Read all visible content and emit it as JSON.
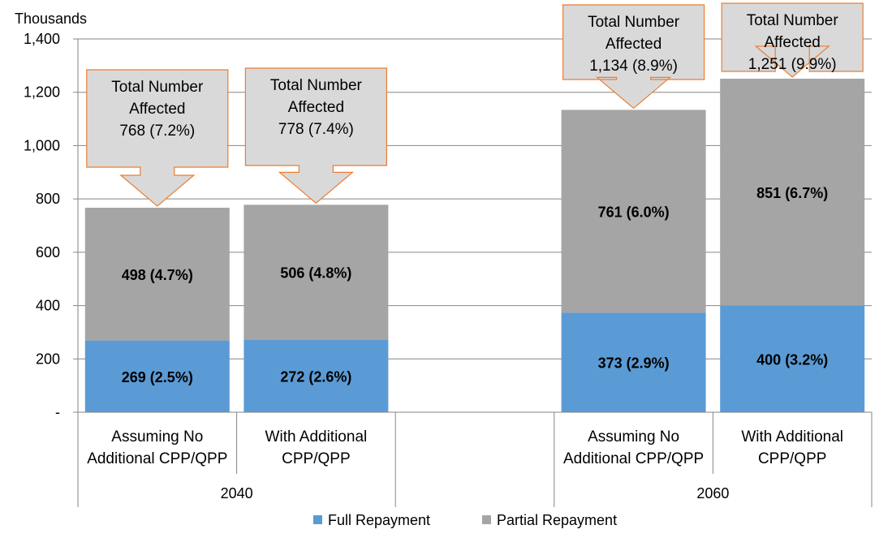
{
  "chart_data": {
    "type": "bar",
    "stacked": true,
    "ylabel": "Thousands",
    "ylim": [
      0,
      1400
    ],
    "yticks": [
      {
        "value": 0,
        "label": "-"
      },
      {
        "value": 200,
        "label": "200"
      },
      {
        "value": 400,
        "label": "400"
      },
      {
        "value": 600,
        "label": "600"
      },
      {
        "value": 800,
        "label": "800"
      },
      {
        "value": 1000,
        "label": "1,000"
      },
      {
        "value": 1200,
        "label": "1,200"
      },
      {
        "value": 1400,
        "label": "1,400"
      }
    ],
    "grid": true,
    "legend_position": "bottom",
    "groups": [
      {
        "label": "2040",
        "categories": [
          {
            "lines": [
              "Assuming No",
              "Additional CPP/QPP"
            ]
          },
          {
            "lines": [
              "With Additional",
              "CPP/QPP"
            ]
          }
        ]
      },
      {
        "label": "2060",
        "categories": [
          {
            "lines": [
              "Assuming No",
              "Additional CPP/QPP"
            ]
          },
          {
            "lines": [
              "With Additional",
              "CPP/QPP"
            ]
          }
        ]
      }
    ],
    "series": [
      {
        "name": "Full Repayment",
        "color": "#5B9BD5",
        "values": [
          269,
          272,
          373,
          400
        ],
        "labels": [
          "269 (2.5%)",
          "272 (2.6%)",
          "373 (2.9%)",
          "400 (3.2%)"
        ]
      },
      {
        "name": "Partial Repayment",
        "color": "#A5A5A5",
        "values": [
          498,
          506,
          761,
          851
        ],
        "labels": [
          "498 (4.7%)",
          "506 (4.8%)",
          "761 (6.0%)",
          "851 (6.7%)"
        ]
      }
    ],
    "annotations": [
      {
        "lines": [
          "Total Number",
          "Affected",
          "768 (7.2%)"
        ]
      },
      {
        "lines": [
          "Total Number",
          "Affected",
          "778 (7.4%)"
        ]
      },
      {
        "lines": [
          "Total Number",
          "Affected",
          "1,134 (8.9%)"
        ]
      },
      {
        "lines": [
          "Total Number",
          "Affected",
          "1,251 (9.9%)"
        ]
      }
    ],
    "callout_style": {
      "fill": "#D9D9D9",
      "stroke": "#ED7D31"
    }
  }
}
